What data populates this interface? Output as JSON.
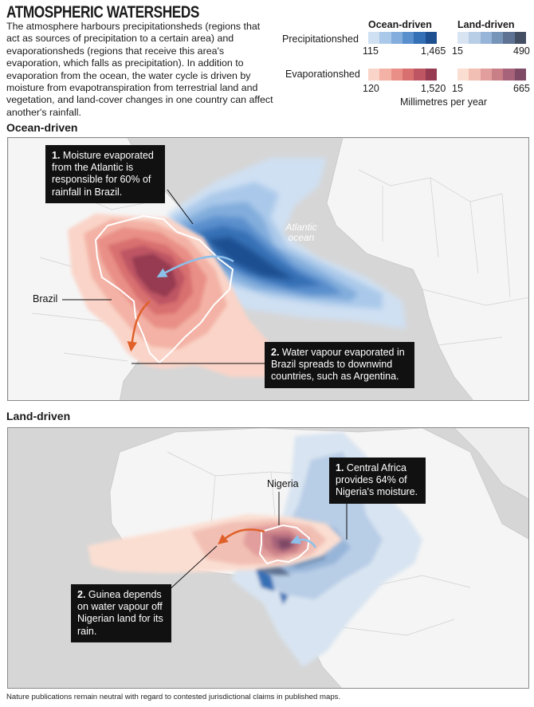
{
  "title": "ATMOSPHERIC WATERSHEDS",
  "intro": "The atmosphere harbours precipitationsheds (regions that act as sources of precipitation to a certain area) and evaporationsheds (regions that receive this area's evaporation, which falls as precipitation). In addition to evaporation from the ocean, the water cycle is driven by moisture from evapotranspiration from terrestrial land and vegetation, and land-cover changes in one country can affect another's rainfall.",
  "legend": {
    "headers": {
      "ocean": "Ocean-driven",
      "land": "Land-driven"
    },
    "rows": [
      {
        "label": "Precipitationshed",
        "ocean": {
          "min": "115",
          "max": "1,465",
          "colors": [
            "#cfe0f3",
            "#aac9ea",
            "#82addc",
            "#5a8fcd",
            "#3470b5",
            "#1d4f91"
          ]
        },
        "land": {
          "min": "15",
          "max": "490",
          "colors": [
            "#d8e4f1",
            "#b8cde6",
            "#97b5d9",
            "#7795b9",
            "#5e7393",
            "#434e63"
          ]
        }
      },
      {
        "label": "Evaporationshed",
        "ocean": {
          "min": "120",
          "max": "1,520",
          "colors": [
            "#fad4c8",
            "#f3b2a5",
            "#e98f87",
            "#d8706f",
            "#bd5563",
            "#963b51"
          ]
        },
        "land": {
          "min": "15",
          "max": "665",
          "colors": [
            "#fbded2",
            "#f2bfb4",
            "#e29e9c",
            "#c97f86",
            "#a7637a",
            "#7e4a66"
          ]
        }
      }
    ],
    "units": "Millimetres per year"
  },
  "sections": {
    "ocean": "Ocean-driven",
    "land": "Land-driven"
  },
  "ocean_map": {
    "callout1_num": "1.",
    "callout1": "Moisture evaporated from the Atlantic is responsible for 60% of rainfall in Brazil.",
    "callout2_num": "2.",
    "callout2": "Water vapour evaporated in Brazil spreads to downwind countries, such as Argentina.",
    "country_label": "Brazil",
    "ocean_label": "Atlantic ocean"
  },
  "land_map": {
    "callout1_num": "1.",
    "callout1": "Central Africa provides 64% of Nigeria's moisture.",
    "callout2_num": "2.",
    "callout2": "Guinea depends on water vapour off Nigerian land for its rain.",
    "country_label": "Nigeria"
  },
  "footer": "Nature publications remain neutral with regard to contested jurisdictional claims in published maps."
}
